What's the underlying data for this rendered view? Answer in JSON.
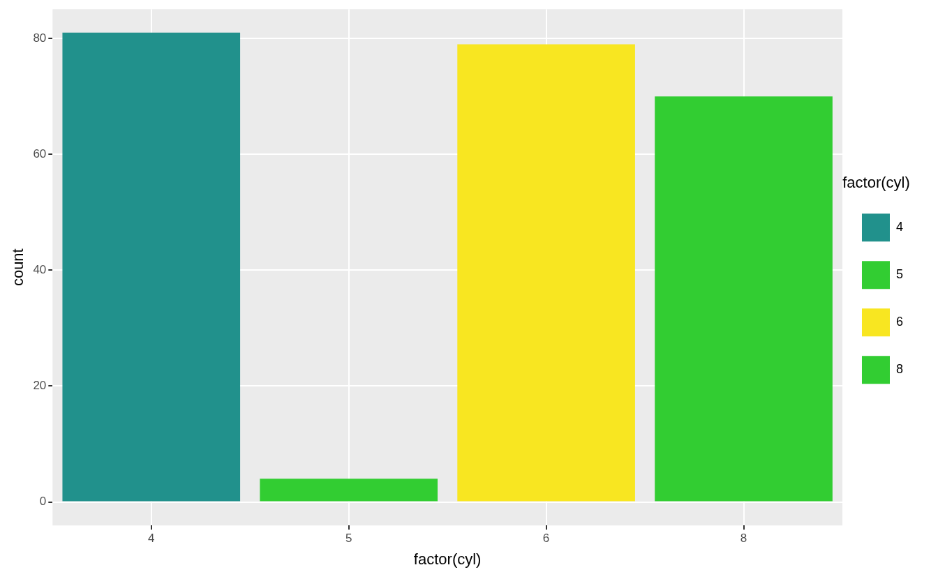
{
  "chart_data": {
    "type": "bar",
    "xlabel": "factor(cyl)",
    "ylabel": "count",
    "legend_title": "factor(cyl)",
    "categories": [
      "4",
      "5",
      "6",
      "8"
    ],
    "series": [
      {
        "name": "4",
        "color": "#21918c",
        "values": [
          81,
          null,
          null,
          null
        ]
      },
      {
        "name": "5",
        "color": "#32cd32",
        "values": [
          null,
          4,
          null,
          null
        ]
      },
      {
        "name": "6",
        "color": "#f8e621",
        "values": [
          null,
          null,
          79,
          null
        ]
      },
      {
        "name": "8",
        "color": "#32cd32",
        "values": [
          null,
          null,
          null,
          70
        ]
      }
    ],
    "ylim": [
      -4.05,
      85.05
    ],
    "yticks": [
      0,
      20,
      40,
      60,
      80
    ],
    "grid": true,
    "legend": "right"
  }
}
